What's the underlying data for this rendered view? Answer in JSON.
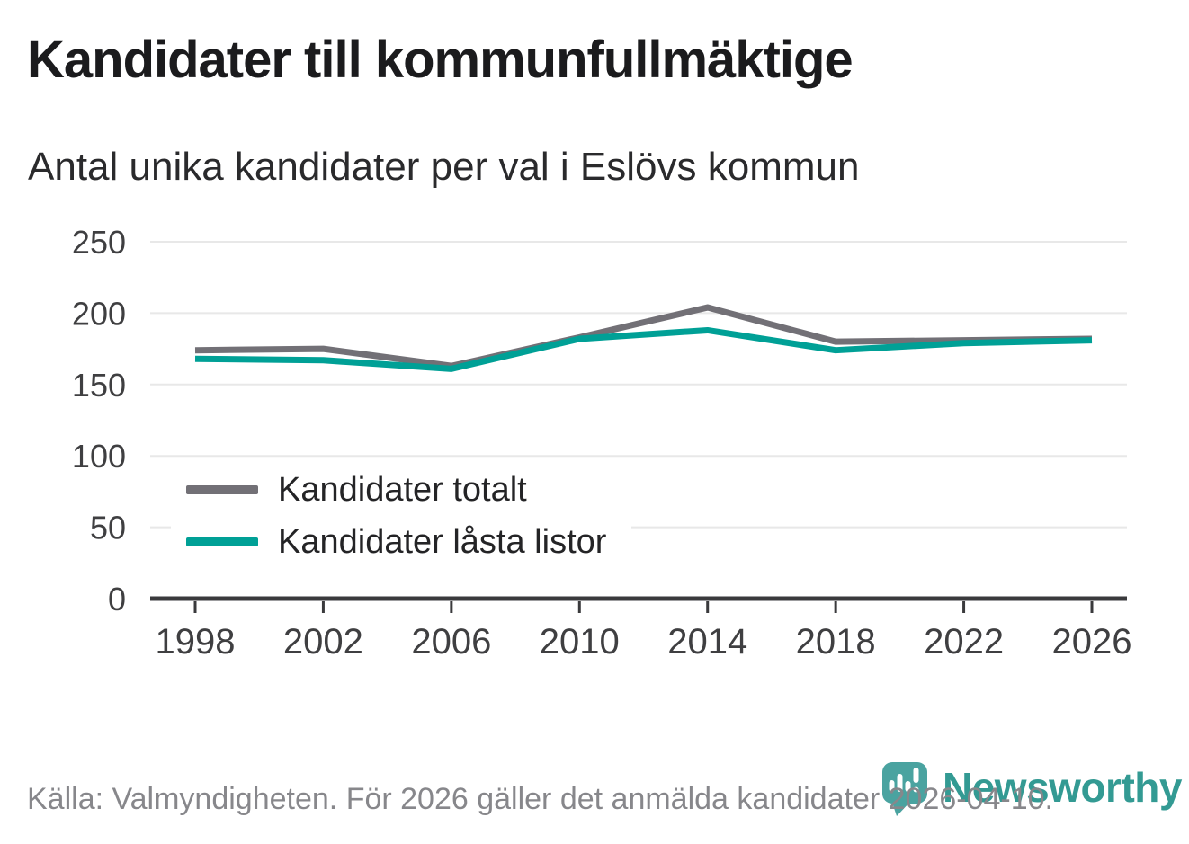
{
  "header": {
    "title": "Kandidater till kommunfullmäktige",
    "subtitle": "Antal unika kandidater per val i Eslövs kommun"
  },
  "chart_data": {
    "type": "line",
    "categories": [
      "1998",
      "2002",
      "2006",
      "2010",
      "2014",
      "2018",
      "2022",
      "2026"
    ],
    "series": [
      {
        "name": "Kandidater totalt",
        "color": "#727076",
        "values": [
          174,
          175,
          163,
          183,
          204,
          180,
          181,
          182
        ]
      },
      {
        "name": "Kandidater låsta listor",
        "color": "#00a096",
        "values": [
          168,
          167,
          161,
          182,
          188,
          174,
          179,
          181
        ]
      }
    ],
    "title": "Kandidater till kommunfullmäktige",
    "subtitle": "Antal unika kandidater per val i Eslövs kommun",
    "xlabel": "",
    "ylabel": "",
    "ylim": [
      0,
      250
    ],
    "yticks": [
      0,
      50,
      100,
      150,
      200,
      250
    ],
    "grid": "horizontal",
    "gridline_color": "#e8e8e8",
    "axis_color": "#3a3a3c",
    "label_color": "#3f3f41",
    "legend_position": "inside-left"
  },
  "footer": {
    "source": "Källa: Valmyndigheten. För 2026 gäller det anmälda kandidater 2026-04-10.",
    "logo": {
      "text": "Newsworthy",
      "icon": "barchart-pin-icon",
      "pin_color": "#4aa3a0",
      "wordmark_color": "#339a93"
    }
  }
}
